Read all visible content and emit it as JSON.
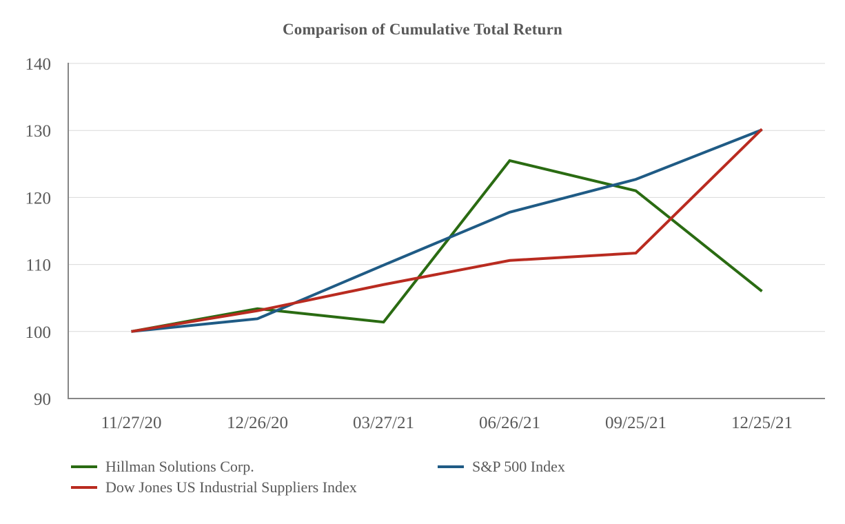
{
  "title": "Comparison of Cumulative Total Return",
  "colors": {
    "background": "#ffffff",
    "text": "#595959",
    "gridline": "#d9d9d9",
    "axis": "#868686"
  },
  "chart_data": {
    "type": "line",
    "title": "Comparison of Cumulative Total Return",
    "categories": [
      "11/27/20",
      "12/26/20",
      "03/27/21",
      "06/26/21",
      "09/25/21",
      "12/25/21"
    ],
    "series": [
      {
        "name": "Hillman Solutions Corp.",
        "color": "#2A6B12",
        "values": [
          100.0,
          103.4,
          101.4,
          125.5,
          121.0,
          106.0
        ]
      },
      {
        "name": "S&P 500 Index",
        "color": "#1F5B85",
        "values": [
          100.0,
          101.9,
          109.9,
          117.8,
          122.7,
          130.1
        ]
      },
      {
        "name": "Dow Jones US Industrial Suppliers Index",
        "color": "#B92B20",
        "values": [
          100.0,
          103.1,
          107.0,
          110.6,
          111.7,
          130.2
        ]
      }
    ],
    "ylim": [
      90,
      140
    ],
    "yticks": [
      90,
      100,
      110,
      120,
      130,
      140
    ],
    "grid": "horizontal",
    "legend_position": "bottom",
    "legend_columns": 2
  }
}
